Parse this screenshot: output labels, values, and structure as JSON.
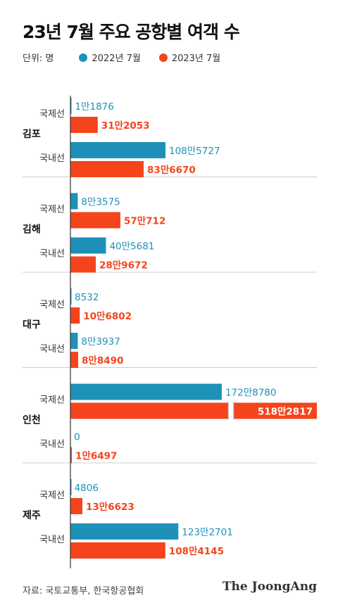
{
  "header": {
    "title": "23년 7월 주요 공항별 여객 수",
    "unit": "단위: 명"
  },
  "colors": {
    "y2022": "#1d91b8",
    "y2023": "#f5441c",
    "axis": "#333333",
    "divider": "#cccccc"
  },
  "footer": {
    "source": "자료: 국토교통부, 한국항공협회",
    "brand": "The JoongAng"
  },
  "chart_data": {
    "type": "bar",
    "orientation": "horizontal",
    "title": "23년 7월 주요 공항별 여객 수",
    "unit": "단위: 명",
    "axis_break": true,
    "series": [
      {
        "name": "2022년 7월",
        "color": "#1d91b8"
      },
      {
        "name": "2023년 7월",
        "color": "#f5441c"
      }
    ],
    "airports": [
      {
        "name": "김포",
        "groups": [
          {
            "label": "국제선",
            "values": [
              11876,
              312053
            ],
            "labels": [
              "1만1876",
              "31만2053"
            ]
          },
          {
            "label": "국내선",
            "values": [
              1085727,
              836670
            ],
            "labels": [
              "108만5727",
              "83만6670"
            ]
          }
        ]
      },
      {
        "name": "김해",
        "groups": [
          {
            "label": "국제선",
            "values": [
              83575,
              570712
            ],
            "labels": [
              "8만3575",
              "57만712"
            ]
          },
          {
            "label": "국내선",
            "values": [
              405681,
              289672
            ],
            "labels": [
              "40만5681",
              "28만9672"
            ]
          }
        ]
      },
      {
        "name": "대구",
        "groups": [
          {
            "label": "국제선",
            "values": [
              8532,
              106802
            ],
            "labels": [
              "8532",
              "10만6802"
            ]
          },
          {
            "label": "국내선",
            "values": [
              83937,
              88490
            ],
            "labels": [
              "8만3937",
              "8만8490"
            ]
          }
        ]
      },
      {
        "name": "인천",
        "groups": [
          {
            "label": "국제선",
            "values": [
              1728780,
              5182817
            ],
            "labels": [
              "172만8780",
              "518만2817"
            ]
          },
          {
            "label": "국내선",
            "values": [
              0,
              16497
            ],
            "labels": [
              "0",
              "1만6497"
            ]
          }
        ]
      },
      {
        "name": "제주",
        "groups": [
          {
            "label": "국제선",
            "values": [
              4806,
              136623
            ],
            "labels": [
              "4806",
              "13만6623"
            ]
          },
          {
            "label": "국내선",
            "values": [
              1232701,
              1084145
            ],
            "labels": [
              "123만2701",
              "108만4145"
            ]
          }
        ]
      }
    ]
  }
}
